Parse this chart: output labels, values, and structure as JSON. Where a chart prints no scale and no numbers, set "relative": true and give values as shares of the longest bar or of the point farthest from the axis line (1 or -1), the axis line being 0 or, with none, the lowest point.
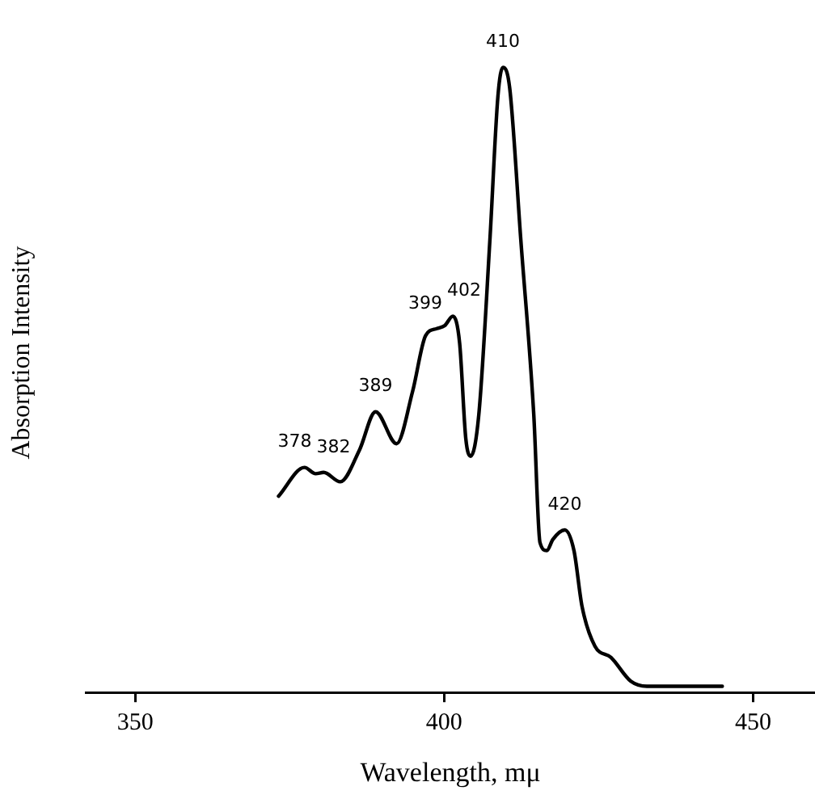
{
  "chart_data": {
    "type": "line",
    "xlabel": "Wavelength, mμ",
    "ylabel": "Absorption Intensity",
    "relative": true,
    "xlim": [
      342,
      460
    ],
    "xticks": [
      350,
      400,
      450
    ],
    "grid": false,
    "legend": false,
    "marker": "none",
    "line_style": "solid",
    "series": [
      {
        "color": "#000000",
        "x": [
          373.2,
          377.4,
          379.2,
          380.5,
          383.2,
          386.3,
          388.9,
          392.3,
          394.9,
          397,
          398.8,
          400.1,
          401.4,
          402.5,
          403.5,
          404.3,
          405.6,
          407.4,
          408.7,
          409.5,
          410.6,
          412.4,
          414.5,
          415.5,
          416.6,
          417.6,
          419.5,
          421,
          422.3,
          424.4,
          427,
          430.2,
          432.8,
          438,
          445
        ],
        "values": [
          0.314,
          0.36,
          0.35,
          0.352,
          0.337,
          0.388,
          0.449,
          0.398,
          0.482,
          0.571,
          0.582,
          0.587,
          0.602,
          0.559,
          0.406,
          0.378,
          0.444,
          0.724,
          0.954,
          1,
          0.967,
          0.724,
          0.444,
          0.24,
          0.227,
          0.245,
          0.26,
          0.227,
          0.138,
          0.074,
          0.056,
          0.018,
          0.01,
          0.01,
          0.01
        ]
      }
    ],
    "annotations": [
      {
        "text": "378",
        "x": 377.4,
        "y": 0.36
      },
      {
        "text": "382",
        "x": 380.5,
        "y": 0.352
      },
      {
        "text": "389",
        "x": 388.9,
        "y": 0.449
      },
      {
        "text": "399",
        "x": 398.8,
        "y": 0.582
      },
      {
        "text": "402",
        "x": 401.4,
        "y": 0.602
      },
      {
        "text": "410",
        "x": 409.5,
        "y": 1
      },
      {
        "text": "420",
        "x": 419.5,
        "y": 0.26
      }
    ]
  }
}
